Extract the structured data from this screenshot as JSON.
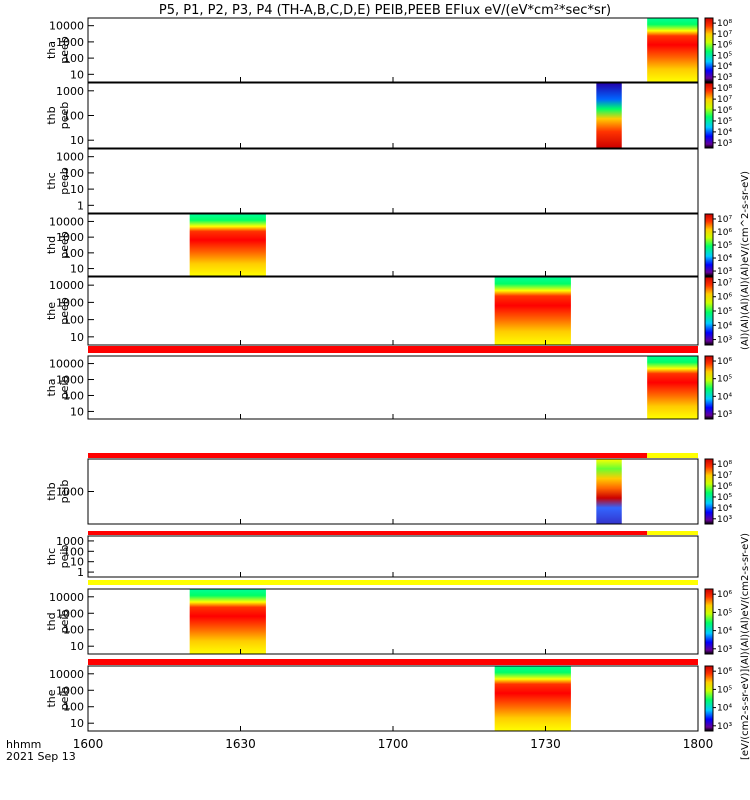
{
  "title": "P5, P1, P2, P3, P4 (TH-A,B,C,D,E) PEIB,PEEB EFlux eV/(eV*cm²*sec*sr)",
  "footer": {
    "time_format": "hhmm",
    "date": "2021 Sep 13"
  },
  "colorbar_labels": {
    "peeb": "(Al)(Al)(Al)(Al)(Al)eV/(cm^2-s-sr-eV)",
    "peib": "[eV/(cm2-s-sr-eV)](Al)(Al)(Al)eV/(cm2-s-sr-eV)"
  },
  "colors": {
    "red_bar": "#ff0000",
    "yellow_bar": "#ffff00"
  },
  "chart_data": {
    "type": "heatmap",
    "x_axis": {
      "range": [
        "1600",
        "1800"
      ],
      "ticks": [
        "1600",
        "1630",
        "1700",
        "1730",
        "1800"
      ]
    },
    "panels": [
      {
        "probe": "tha",
        "product": "peeb",
        "ylabel_top": "tha",
        "ylabel_bottom": "peeb",
        "log_y": true,
        "y_ticks": [
          "10",
          "100",
          "1000",
          "10000"
        ],
        "data_start": "1750",
        "data_end": "1800",
        "pattern": "energy_banded",
        "cbar_ticks": [
          "10³",
          "10⁴",
          "10⁵",
          "10⁶",
          "10⁷",
          "10⁸"
        ],
        "bars": []
      },
      {
        "probe": "thb",
        "product": "peeb",
        "ylabel_top": "thb",
        "ylabel_bottom": "peeb",
        "log_y": true,
        "y_ticks": [
          "10",
          "100",
          "1000"
        ],
        "data_start": "1740",
        "data_end": "1745",
        "pattern": "low_top",
        "cbar_ticks": [
          "10³",
          "10⁴",
          "10⁵",
          "10⁶",
          "10⁷",
          "10⁸"
        ],
        "bars": []
      },
      {
        "probe": "thc",
        "product": "peeb",
        "ylabel_top": "thc",
        "ylabel_bottom": "peeb",
        "log_y": true,
        "y_ticks": [
          "1",
          "10",
          "100",
          "1000"
        ],
        "data_start": null,
        "data_end": null,
        "pattern": "none",
        "cbar_ticks": [],
        "bars": []
      },
      {
        "probe": "thd",
        "product": "peeb",
        "ylabel_top": "thd",
        "ylabel_bottom": "peeb",
        "log_y": true,
        "y_ticks": [
          "10",
          "100",
          "1000",
          "10000"
        ],
        "data_start": "1620",
        "data_end": "1635",
        "pattern": "energy_banded",
        "cbar_ticks": [
          "10³",
          "10⁴",
          "10⁵",
          "10⁶",
          "10⁷"
        ],
        "bars": []
      },
      {
        "probe": "the",
        "product": "peeb",
        "ylabel_top": "the",
        "ylabel_bottom": "peeb",
        "log_y": true,
        "y_ticks": [
          "10",
          "100",
          "1000",
          "10000"
        ],
        "data_start": "1720",
        "data_end": "1735",
        "pattern": "energy_banded",
        "cbar_ticks": [
          "10³",
          "10⁴",
          "10⁵",
          "10⁶",
          "10⁷"
        ],
        "bars": []
      },
      {
        "probe": "tha",
        "product": "peib",
        "ylabel_top": "tha",
        "ylabel_bottom": "peib",
        "log_y": true,
        "y_ticks": [
          "10",
          "100",
          "1000",
          "10000"
        ],
        "data_start": "1750",
        "data_end": "1800",
        "pattern": "energy_banded",
        "cbar_ticks": [
          "10³",
          "10⁴",
          "10⁵",
          "10⁶"
        ],
        "bars": [
          {
            "color": "red",
            "start": "1600",
            "end": "1800"
          }
        ]
      },
      {
        "probe": "thb",
        "product": "peib",
        "ylabel_top": "thb",
        "ylabel_bottom": "peib",
        "log_y": true,
        "y_ticks": [
          "1000"
        ],
        "data_start": "1740",
        "data_end": "1745",
        "pattern": "mixed",
        "cbar_ticks": [
          "10³",
          "10⁴",
          "10⁵",
          "10⁶",
          "10⁷",
          "10⁸"
        ],
        "bars": [
          {
            "color": "red",
            "start": "1600",
            "end": "1750"
          },
          {
            "color": "yellow",
            "start": "1750",
            "end": "1800"
          }
        ]
      },
      {
        "probe": "thc",
        "product": "peib",
        "ylabel_top": "thc",
        "ylabel_bottom": "peib",
        "log_y": true,
        "y_ticks": [
          "1",
          "10",
          "100",
          "1000"
        ],
        "data_start": null,
        "data_end": null,
        "pattern": "none",
        "cbar_ticks": [],
        "bars": [
          {
            "color": "red",
            "start": "1600",
            "end": "1750"
          },
          {
            "color": "yellow",
            "start": "1750",
            "end": "1800"
          }
        ]
      },
      {
        "probe": "thd",
        "product": "peib",
        "ylabel_top": "thd",
        "ylabel_bottom": "peib",
        "log_y": true,
        "y_ticks": [
          "10",
          "100",
          "1000",
          "10000"
        ],
        "data_start": "1620",
        "data_end": "1635",
        "pattern": "energy_banded",
        "cbar_ticks": [
          "10³",
          "10⁴",
          "10⁵",
          "10⁶"
        ],
        "bars": [
          {
            "color": "yellow",
            "start": "1600",
            "end": "1800"
          }
        ]
      },
      {
        "probe": "the",
        "product": "peib",
        "ylabel_top": "the",
        "ylabel_bottom": "peib",
        "log_y": true,
        "y_ticks": [
          "10",
          "100",
          "1000",
          "10000"
        ],
        "data_start": "1720",
        "data_end": "1735",
        "pattern": "energy_banded",
        "cbar_ticks": [
          "10³",
          "10⁴",
          "10⁵",
          "10⁶"
        ],
        "bars": [
          {
            "color": "red",
            "start": "1600",
            "end": "1800"
          }
        ]
      }
    ]
  }
}
